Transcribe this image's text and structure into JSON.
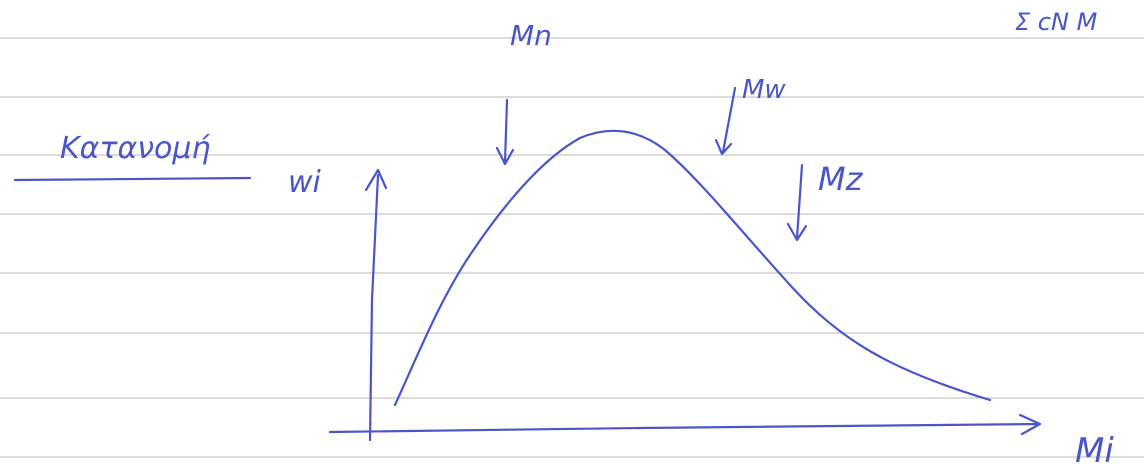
{
  "heading": "Κατανομή",
  "sketch": {
    "y_axis_label": "wi",
    "x_axis_label": "Mi",
    "markers": [
      {
        "label": "Mn"
      },
      {
        "label": "Mw"
      },
      {
        "label": "Mz"
      }
    ]
  },
  "corner_note": "Σ cN M"
}
